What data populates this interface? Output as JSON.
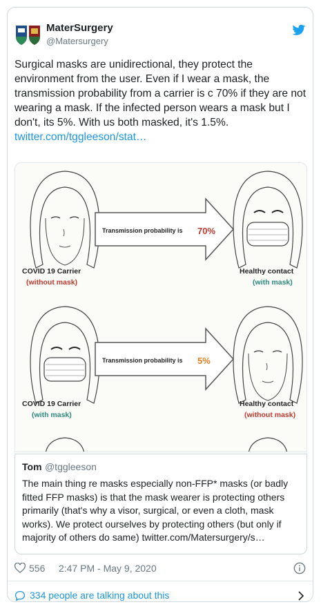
{
  "tweet": {
    "display_name": "MaterSurgery",
    "handle": "@Matersurgery",
    "text": "Surgical masks are unidirectional, they protect the environment from the user. Even if I wear a mask, the transmission probability from a carrier is c 70% if they are not wearing a mask. If the infected person wears a mask but I don't, its 5%. With us both masked, it's 1.5%.",
    "link": "twitter.com/tggleeson/stat…"
  },
  "infographic": {
    "row1": {
      "arrow_label": "Transmission probability is",
      "probability": "70%",
      "left_title": "COVID 19 Carrier",
      "left_sub": "(without mask)",
      "right_title": "Healthy contact",
      "right_sub": "(with mask)"
    },
    "row2": {
      "arrow_label": "Transmission probability is",
      "probability": "5%",
      "left_title": "COVID 19 Carrier",
      "left_sub": "(with mask)",
      "right_title": "Healthy contact",
      "right_sub": "(without mask)"
    },
    "colors": {
      "red": "#c0392b",
      "teal": "#2a8a7a",
      "orange": "#e67e22"
    }
  },
  "quoted": {
    "name": "Tom",
    "handle": "@tggleeson",
    "text": "The main thing re masks especially non-FFP* masks (or badly fitted FFP masks) is that the mask wearer is protecting others primarily (that's why a visor, surgical, or even a cloth, mask works).  We protect ourselves by protecting others (but only if majority of others do same) twitter.com/Matersurgery/s…"
  },
  "footer": {
    "likes": "556",
    "timestamp": "2:47 PM - May 9, 2020",
    "talking": "334 people are talking about this"
  },
  "icons": [
    "avatar-logo",
    "twitter-bird-icon",
    "heart-icon",
    "info-icon",
    "chat-bubble-icon",
    "chevron-right-icon"
  ],
  "accent": "#1b95e0"
}
